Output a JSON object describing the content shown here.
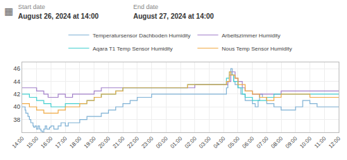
{
  "chart_data": {
    "type": "step",
    "annotations": [
      {
        "text": "▦"
      },
      {
        "text": "Start date"
      },
      {
        "text": "August 26, 2024 at 14:00"
      },
      {
        "text": "End date"
      },
      {
        "text": "August 27, 2024 at 14:00"
      }
    ],
    "xlim": [
      0,
      22
    ],
    "xticks": [
      {
        "value": 0,
        "label": "14:00"
      },
      {
        "value": 1,
        "label": "15:00"
      },
      {
        "value": 2,
        "label": "16:00"
      },
      {
        "value": 3,
        "label": "17:00"
      },
      {
        "value": 4,
        "label": "18:00"
      },
      {
        "value": 5,
        "label": "19:00"
      },
      {
        "value": 6,
        "label": "20:00"
      },
      {
        "value": 7,
        "label": "21:00"
      },
      {
        "value": 8,
        "label": "22:00"
      },
      {
        "value": 9,
        "label": "23:00"
      },
      {
        "value": 10,
        "label": "00:00"
      },
      {
        "value": 11,
        "label": "01:00"
      },
      {
        "value": 12,
        "label": "02:00"
      },
      {
        "value": 13,
        "label": "03:00"
      },
      {
        "value": 14,
        "label": "04:00"
      },
      {
        "value": 15,
        "label": "05:00"
      },
      {
        "value": 16,
        "label": "06:00"
      },
      {
        "value": 17,
        "label": "07:00"
      },
      {
        "value": 18,
        "label": "08:00"
      },
      {
        "value": 19,
        "label": "09:00"
      },
      {
        "value": 20,
        "label": "10:00"
      },
      {
        "value": 21,
        "label": "11:00"
      },
      {
        "value": 22,
        "label": "12:00"
      }
    ],
    "ylim": [
      36,
      47
    ],
    "yticks": [
      38,
      40,
      42,
      44,
      46
    ],
    "grid": true,
    "legend": "top",
    "series": [
      {
        "name": "Temperatursensor Dachboden Humidity",
        "color": "#7bafd4",
        "x": [
          0,
          0.2,
          0.25,
          0.4,
          0.5,
          0.6,
          0.75,
          0.8,
          0.9,
          1.0,
          1.1,
          1.2,
          1.3,
          1.4,
          1.5,
          1.6,
          1.7,
          1.9,
          2.0,
          2.2,
          2.5,
          2.7,
          3.0,
          3.2,
          3.5,
          4.0,
          4.5,
          5.0,
          5.5,
          6.0,
          6.5,
          7.0,
          7.5,
          8.0,
          8.5,
          9.0,
          9.5,
          10.0,
          10.5,
          11.0,
          12.0,
          13.0,
          14.0,
          14.2,
          14.3,
          14.4,
          14.5,
          14.6,
          14.7,
          14.8,
          15.0,
          15.2,
          15.5,
          16.0,
          16.2,
          16.4,
          16.5,
          16.7,
          17.0,
          17.5,
          18.0,
          18.5,
          19.0,
          19.5,
          20.0,
          20.5,
          21.0,
          21.5,
          22.0
        ],
        "values": [
          40,
          39.5,
          39,
          38.5,
          38,
          37.5,
          37,
          36.8,
          37,
          36.5,
          37,
          36.5,
          36.2,
          36,
          36.5,
          37,
          36.5,
          36.8,
          37,
          36.5,
          37,
          37.5,
          37,
          37.5,
          37.5,
          38,
          38.5,
          38.5,
          39,
          39.5,
          40,
          40.5,
          41,
          41.5,
          41.5,
          42,
          42,
          42,
          42,
          42,
          42,
          42,
          42,
          43,
          44,
          45,
          46,
          45,
          44,
          43.5,
          43,
          42,
          41,
          40.5,
          40,
          41,
          42,
          41.5,
          40.5,
          40,
          39.5,
          39.5,
          40,
          41,
          40.5,
          40,
          40,
          40,
          40
        ]
      },
      {
        "name": "Arbeitszimmer Humidity",
        "color": "#a07cc8",
        "x": [
          0,
          0.5,
          1.0,
          1.5,
          1.8,
          2.0,
          2.2,
          2.5,
          3.0,
          3.5,
          4.0,
          4.5,
          5.0,
          5.5,
          6.0,
          7.0,
          8.0,
          9.0,
          10.0,
          11.0,
          12.0,
          13.0,
          13.5,
          14.0,
          14.3,
          14.5,
          14.8,
          15.0,
          15.3,
          15.5,
          16.0,
          16.5,
          17.0,
          17.5,
          18.0,
          19.0,
          20.0,
          21.0,
          22.0
        ],
        "values": [
          43,
          43,
          42.5,
          42,
          41.5,
          41.5,
          41.5,
          42,
          41.5,
          42,
          42,
          42,
          42.5,
          43,
          43,
          43,
          43,
          43,
          43,
          43,
          43.5,
          43.5,
          43.5,
          43.5,
          44,
          45.5,
          44.5,
          44,
          43,
          42.5,
          42,
          42,
          42,
          42,
          42.5,
          42.5,
          42.5,
          42.5,
          42.5
        ]
      },
      {
        "name": "Aqara T1 Temp Sensor Humidity",
        "color": "#3ecece",
        "x": [
          0,
          0.5,
          1.0,
          1.5,
          2.0,
          2.5,
          3.0,
          3.5,
          4.0,
          4.5,
          5.0,
          5.5,
          6.0,
          6.5,
          7.0,
          7.5,
          8.0,
          8.5,
          9.0,
          9.5,
          10.0,
          10.5,
          11.0,
          11.5,
          12.0,
          12.5,
          13.0,
          13.5,
          14.0,
          14.2,
          14.4,
          14.5,
          14.7,
          15.0,
          15.3,
          15.5,
          16.0,
          16.5,
          17.0,
          17.5,
          18.0,
          19.0,
          20.0,
          21.0,
          22.0
        ],
        "values": [
          42,
          41.5,
          41,
          40.5,
          40,
          40,
          40.5,
          40.5,
          40.5,
          41,
          41.5,
          42,
          42,
          42.5,
          43,
          43,
          43,
          43,
          43,
          43,
          43,
          43,
          43,
          43.5,
          43.5,
          43.5,
          43.5,
          43.5,
          43.5,
          44.5,
          45.5,
          45,
          44,
          43,
          42,
          41.5,
          41,
          41,
          41.5,
          42,
          42,
          42,
          42,
          42,
          42
        ]
      },
      {
        "name": "Nous Temp Sensor Humidity",
        "color": "#f0a840",
        "x": [
          0,
          0.5,
          1.0,
          1.5,
          2.0,
          2.5,
          3.0,
          3.5,
          4.0,
          4.5,
          5.0,
          5.5,
          6.0,
          6.5,
          7.0,
          7.5,
          8.0,
          8.5,
          9.0,
          9.5,
          10.0,
          10.5,
          11.0,
          11.5,
          12.0,
          12.5,
          13.0,
          13.5,
          14.0,
          14.2,
          14.4,
          14.5,
          14.8,
          15.0,
          15.5,
          16.0,
          16.5,
          17.0,
          17.5,
          18.0,
          19.0,
          20.0,
          21.0,
          22.0
        ],
        "values": [
          40.5,
          40,
          39.5,
          39,
          39,
          39.5,
          40,
          40,
          40.5,
          41,
          41.5,
          42,
          42,
          42.5,
          43,
          43,
          43,
          43,
          43,
          43,
          43,
          43,
          43,
          43.5,
          43.5,
          43.5,
          43.5,
          43.5,
          43.5,
          44,
          45.5,
          45,
          44.5,
          43.5,
          42.5,
          42,
          41.5,
          41,
          41.5,
          42,
          42,
          41.5,
          41.5,
          41.5
        ]
      }
    ]
  }
}
